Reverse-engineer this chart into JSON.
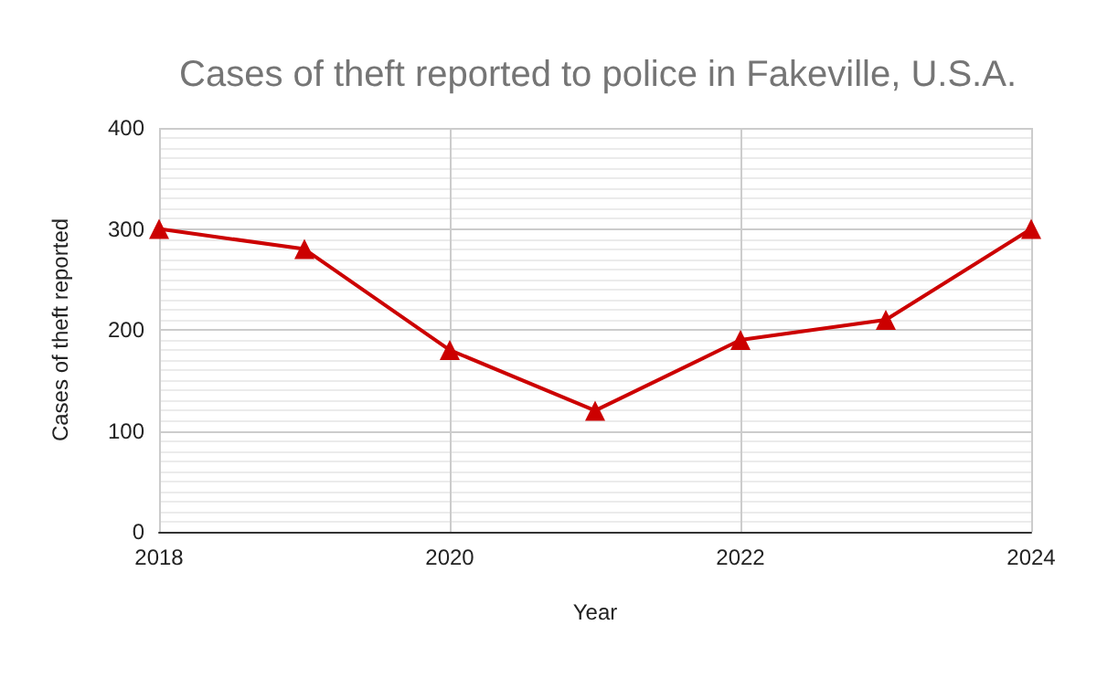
{
  "chart_data": {
    "type": "line",
    "title": "Cases of theft reported to police in Fakeville, U.S.A.",
    "xlabel": "Year",
    "ylabel": "Cases of theft reported",
    "x": [
      2018,
      2019,
      2020,
      2021,
      2022,
      2023,
      2024
    ],
    "series": [
      {
        "color": "#cc0000",
        "values": [
          300,
          280,
          180,
          120,
          190,
          210,
          300
        ]
      }
    ],
    "xlim": [
      2018,
      2024
    ],
    "xticks": [
      2018,
      2020,
      2022,
      2024
    ],
    "ylim": [
      0,
      400
    ],
    "yticks": [
      0,
      100,
      200,
      300,
      400
    ],
    "grid": true,
    "marker": "triangle",
    "line_style": "solid"
  }
}
